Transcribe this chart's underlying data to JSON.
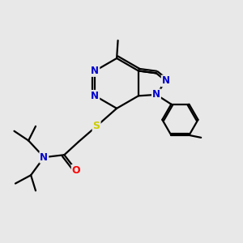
{
  "bg_color": "#e8e8e8",
  "atom_colors": {
    "C": "#000000",
    "N": "#0000cc",
    "S": "#cccc00",
    "O": "#ff0000",
    "H": "#000000"
  },
  "bond_color": "#000000",
  "line_width": 1.6,
  "figsize": [
    3.0,
    3.0
  ],
  "dpi": 100
}
